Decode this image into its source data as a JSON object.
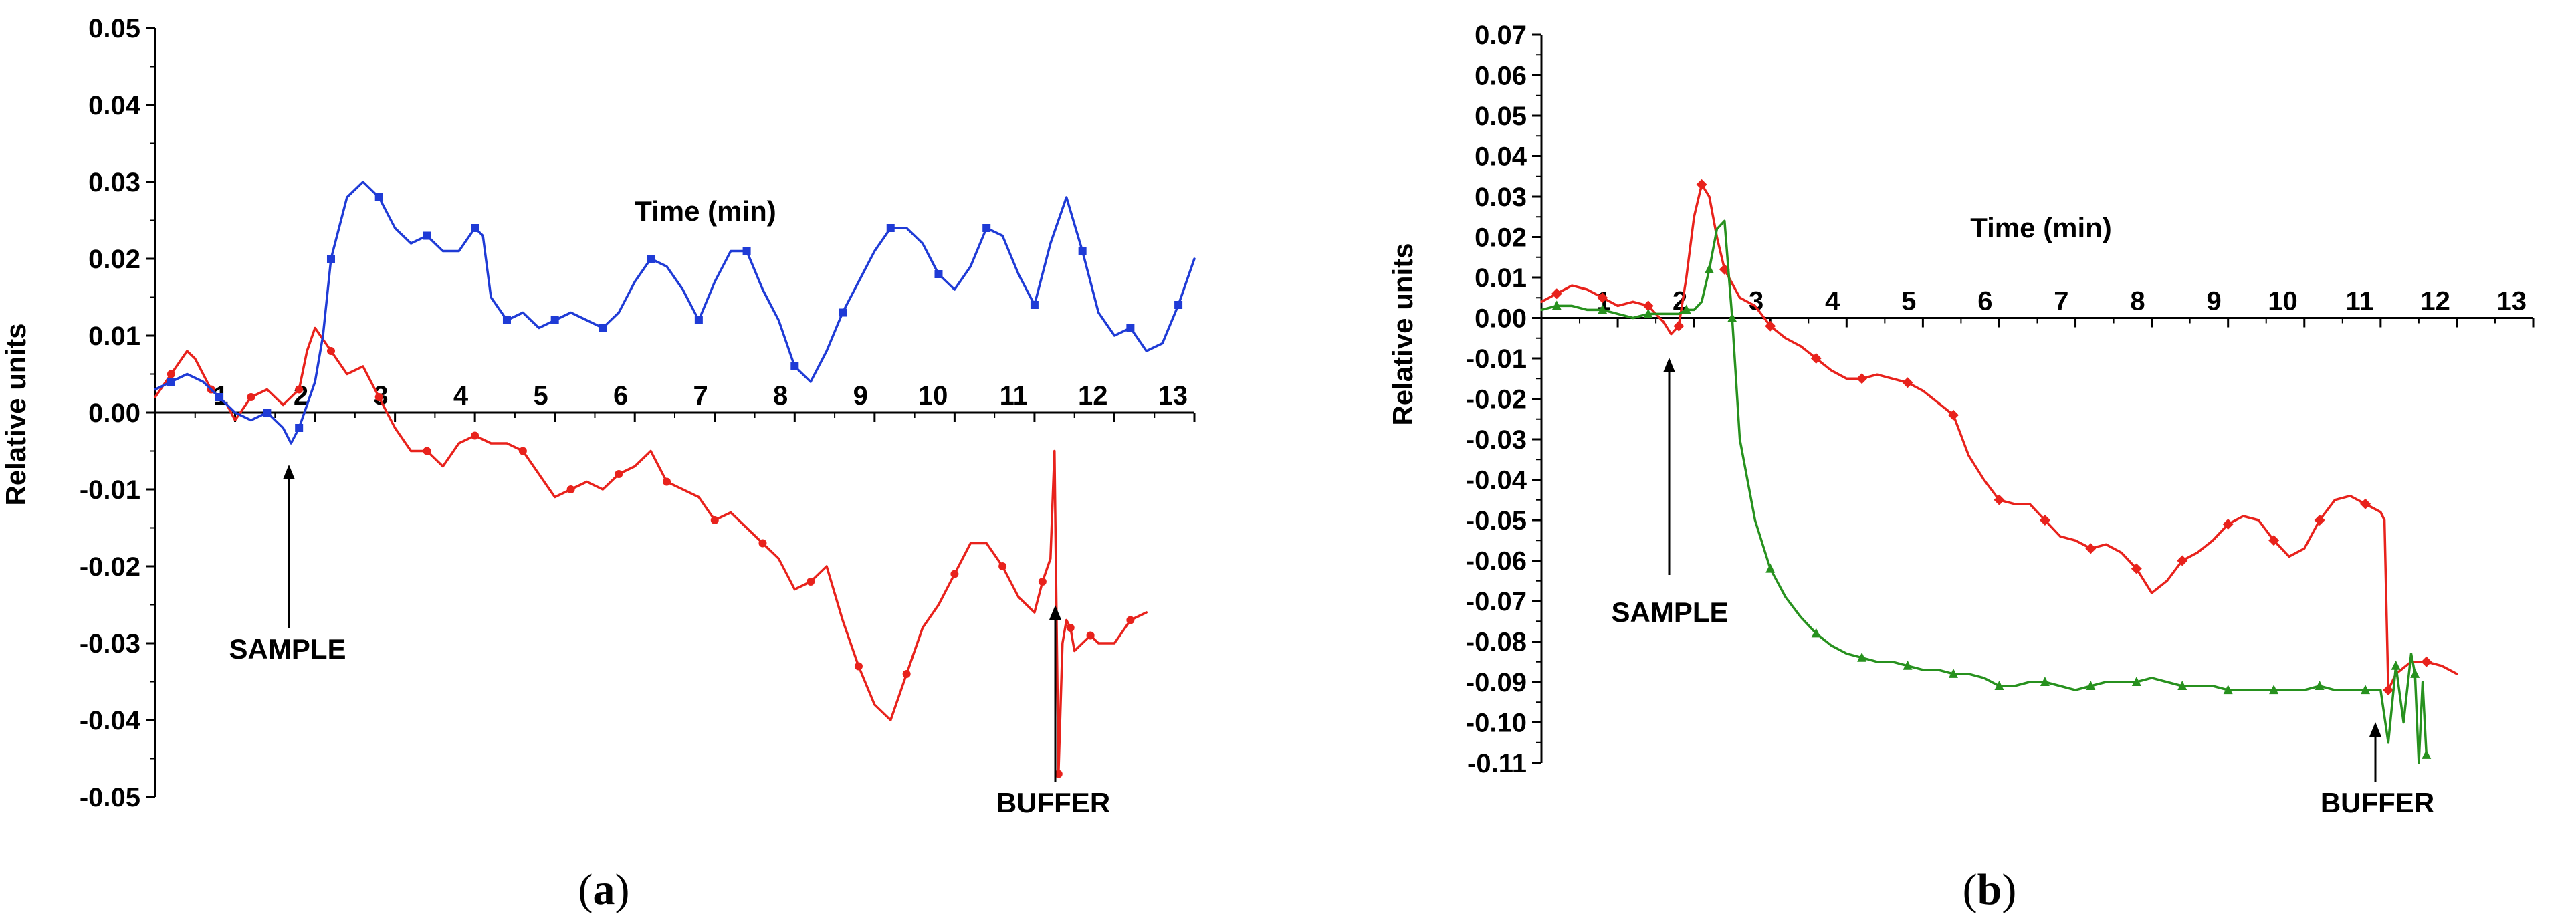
{
  "chart_data": [
    {
      "type": "line",
      "panel_label": "a",
      "xlabel": "Time (min)",
      "ylabel": "Relative units",
      "xlim": [
        0,
        13
      ],
      "ylim": [
        -0.05,
        0.05
      ],
      "x_ticks": [
        "1",
        "2",
        "3",
        "4",
        "5",
        "6",
        "7",
        "8",
        "9",
        "10",
        "11",
        "12",
        "13"
      ],
      "y_ticks": [
        "0.05",
        "0.04",
        "0.03",
        "0.02",
        "0.01",
        "0.00",
        "-0.01",
        "-0.02",
        "-0.03",
        "-0.04",
        "-0.05"
      ],
      "annotations": [
        {
          "text": "SAMPLE",
          "x": 1.7
        },
        {
          "text": "BUFFER",
          "x": 11.2
        }
      ],
      "series": [
        {
          "color": "#e8221c",
          "marker": "circle",
          "x": [
            0,
            0.2,
            0.4,
            0.5,
            0.7,
            0.9,
            1.0,
            1.2,
            1.4,
            1.6,
            1.8,
            1.9,
            2.0,
            2.2,
            2.4,
            2.6,
            2.8,
            3.0,
            3.2,
            3.4,
            3.6,
            3.8,
            4.0,
            4.2,
            4.4,
            4.6,
            4.8,
            5.0,
            5.2,
            5.4,
            5.6,
            5.8,
            6.0,
            6.2,
            6.4,
            6.6,
            6.8,
            7.0,
            7.2,
            7.4,
            7.6,
            7.8,
            8.0,
            8.2,
            8.4,
            8.6,
            8.8,
            9.0,
            9.2,
            9.4,
            9.6,
            9.8,
            10.0,
            10.2,
            10.4,
            10.6,
            10.8,
            11.0,
            11.1,
            11.2,
            11.25,
            11.3,
            11.35,
            11.4,
            11.45,
            11.5,
            11.6,
            11.7,
            11.8,
            12.0,
            12.2,
            12.4
          ],
          "y": [
            0.002,
            0.005,
            0.008,
            0.007,
            0.003,
            0.001,
            -0.001,
            0.002,
            0.003,
            0.001,
            0.003,
            0.008,
            0.011,
            0.008,
            0.005,
            0.006,
            0.002,
            -0.002,
            -0.005,
            -0.005,
            -0.007,
            -0.004,
            -0.003,
            -0.004,
            -0.004,
            -0.005,
            -0.008,
            -0.011,
            -0.01,
            -0.009,
            -0.01,
            -0.008,
            -0.007,
            -0.005,
            -0.009,
            -0.01,
            -0.011,
            -0.014,
            -0.013,
            -0.015,
            -0.017,
            -0.019,
            -0.023,
            -0.022,
            -0.02,
            -0.027,
            -0.033,
            -0.038,
            -0.04,
            -0.034,
            -0.028,
            -0.025,
            -0.021,
            -0.017,
            -0.017,
            -0.02,
            -0.024,
            -0.026,
            -0.022,
            -0.019,
            -0.005,
            -0.047,
            -0.03,
            -0.027,
            -0.028,
            -0.031,
            -0.03,
            -0.029,
            -0.03,
            -0.03,
            -0.027,
            -0.026
          ]
        },
        {
          "color": "#1f3bd6",
          "marker": "square",
          "x": [
            0,
            0.2,
            0.4,
            0.6,
            0.8,
            1.0,
            1.2,
            1.4,
            1.6,
            1.7,
            1.8,
            2.0,
            2.1,
            2.2,
            2.4,
            2.6,
            2.8,
            3.0,
            3.2,
            3.4,
            3.6,
            3.8,
            4.0,
            4.1,
            4.2,
            4.4,
            4.6,
            4.8,
            5.0,
            5.2,
            5.4,
            5.6,
            5.8,
            6.0,
            6.2,
            6.4,
            6.6,
            6.8,
            7.0,
            7.2,
            7.4,
            7.6,
            7.8,
            8.0,
            8.2,
            8.4,
            8.6,
            8.8,
            9.0,
            9.2,
            9.4,
            9.6,
            9.8,
            10.0,
            10.2,
            10.4,
            10.6,
            10.8,
            11.0,
            11.2,
            11.4,
            11.6,
            11.8,
            12.0,
            12.2,
            12.4,
            12.6,
            12.8,
            13.0
          ],
          "y": [
            0.003,
            0.004,
            0.005,
            0.004,
            0.002,
            0.0,
            -0.001,
            0.0,
            -0.002,
            -0.004,
            -0.002,
            0.004,
            0.01,
            0.02,
            0.028,
            0.03,
            0.028,
            0.024,
            0.022,
            0.023,
            0.021,
            0.021,
            0.024,
            0.023,
            0.015,
            0.012,
            0.013,
            0.011,
            0.012,
            0.013,
            0.012,
            0.011,
            0.013,
            0.017,
            0.02,
            0.019,
            0.016,
            0.012,
            0.017,
            0.021,
            0.021,
            0.016,
            0.012,
            0.006,
            0.004,
            0.008,
            0.013,
            0.017,
            0.021,
            0.024,
            0.024,
            0.022,
            0.018,
            0.016,
            0.019,
            0.024,
            0.023,
            0.018,
            0.014,
            0.022,
            0.028,
            0.021,
            0.013,
            0.01,
            0.011,
            0.008,
            0.009,
            0.014,
            0.02
          ]
        }
      ]
    },
    {
      "type": "line",
      "panel_label": "b",
      "xlabel": "Time (min)",
      "ylabel": "Relative units",
      "xlim": [
        0,
        13
      ],
      "ylim": [
        -0.11,
        0.07
      ],
      "x_ticks": [
        "1",
        "2",
        "3",
        "4",
        "5",
        "6",
        "7",
        "8",
        "9",
        "10",
        "11",
        "12",
        "13"
      ],
      "y_ticks": [
        "0.07",
        "0.06",
        "0.05",
        "0.04",
        "0.03",
        "0.02",
        "0.01",
        "0.00",
        "-0.01",
        "-0.02",
        "-0.03",
        "-0.04",
        "-0.05",
        "-0.06",
        "-0.07",
        "-0.08",
        "-0.09",
        "-0.10",
        "-0.11"
      ],
      "annotations": [
        {
          "text": "SAMPLE",
          "x": 1.7
        },
        {
          "text": "BUFFER",
          "x": 11.0
        }
      ],
      "series": [
        {
          "color": "#e8221c",
          "marker": "diamond",
          "x": [
            0,
            0.2,
            0.4,
            0.6,
            0.8,
            1.0,
            1.2,
            1.4,
            1.6,
            1.7,
            1.8,
            1.9,
            2.0,
            2.1,
            2.2,
            2.3,
            2.4,
            2.6,
            2.8,
            3.0,
            3.2,
            3.4,
            3.6,
            3.8,
            4.0,
            4.2,
            4.4,
            4.6,
            4.8,
            5.0,
            5.2,
            5.4,
            5.6,
            5.8,
            6.0,
            6.2,
            6.4,
            6.6,
            6.8,
            7.0,
            7.2,
            7.4,
            7.6,
            7.8,
            8.0,
            8.2,
            8.4,
            8.6,
            8.8,
            9.0,
            9.2,
            9.4,
            9.6,
            9.8,
            10.0,
            10.2,
            10.4,
            10.6,
            10.8,
            11.0,
            11.05,
            11.1,
            11.2,
            11.4,
            11.6,
            11.8,
            12.0
          ],
          "y": [
            0.004,
            0.006,
            0.008,
            0.007,
            0.005,
            0.003,
            0.004,
            0.003,
            -0.001,
            -0.004,
            -0.002,
            0.01,
            0.025,
            0.033,
            0.03,
            0.02,
            0.012,
            0.005,
            0.003,
            -0.002,
            -0.005,
            -0.007,
            -0.01,
            -0.013,
            -0.015,
            -0.015,
            -0.014,
            -0.015,
            -0.016,
            -0.018,
            -0.021,
            -0.024,
            -0.034,
            -0.04,
            -0.045,
            -0.046,
            -0.046,
            -0.05,
            -0.054,
            -0.055,
            -0.057,
            -0.056,
            -0.058,
            -0.062,
            -0.068,
            -0.065,
            -0.06,
            -0.058,
            -0.055,
            -0.051,
            -0.049,
            -0.05,
            -0.055,
            -0.059,
            -0.057,
            -0.05,
            -0.045,
            -0.044,
            -0.046,
            -0.048,
            -0.05,
            -0.092,
            -0.088,
            -0.085,
            -0.085,
            -0.086,
            -0.088
          ]
        },
        {
          "color": "#27911e",
          "marker": "triangle",
          "x": [
            0,
            0.2,
            0.4,
            0.6,
            0.8,
            1.0,
            1.2,
            1.4,
            1.6,
            1.8,
            1.9,
            2.0,
            2.1,
            2.2,
            2.3,
            2.4,
            2.5,
            2.6,
            2.8,
            3.0,
            3.2,
            3.4,
            3.6,
            3.8,
            4.0,
            4.2,
            4.4,
            4.6,
            4.8,
            5.0,
            5.2,
            5.4,
            5.6,
            5.8,
            6.0,
            6.2,
            6.4,
            6.6,
            6.8,
            7.0,
            7.2,
            7.4,
            7.6,
            7.8,
            8.0,
            8.2,
            8.4,
            8.6,
            8.8,
            9.0,
            9.2,
            9.4,
            9.6,
            9.8,
            10.0,
            10.2,
            10.4,
            10.6,
            10.8,
            11.0,
            11.1,
            11.2,
            11.3,
            11.4,
            11.45,
            11.5,
            11.55,
            11.6
          ],
          "y": [
            0.002,
            0.003,
            0.003,
            0.002,
            0.002,
            0.001,
            0.0,
            0.001,
            0.001,
            0.001,
            0.002,
            0.002,
            0.004,
            0.012,
            0.022,
            0.024,
            0.0,
            -0.03,
            -0.05,
            -0.062,
            -0.069,
            -0.074,
            -0.078,
            -0.081,
            -0.083,
            -0.084,
            -0.085,
            -0.085,
            -0.086,
            -0.087,
            -0.087,
            -0.088,
            -0.088,
            -0.089,
            -0.091,
            -0.091,
            -0.09,
            -0.09,
            -0.091,
            -0.092,
            -0.091,
            -0.09,
            -0.09,
            -0.09,
            -0.089,
            -0.09,
            -0.091,
            -0.091,
            -0.091,
            -0.092,
            -0.092,
            -0.092,
            -0.092,
            -0.092,
            -0.092,
            -0.091,
            -0.092,
            -0.092,
            -0.092,
            -0.092,
            -0.105,
            -0.086,
            -0.1,
            -0.083,
            -0.088,
            -0.11,
            -0.09,
            -0.108
          ]
        }
      ]
    }
  ],
  "captions": {
    "a": {
      "open": "(",
      "letter": "a",
      "close": ")"
    },
    "b": {
      "open": "(",
      "letter": "b",
      "close": ")"
    }
  }
}
